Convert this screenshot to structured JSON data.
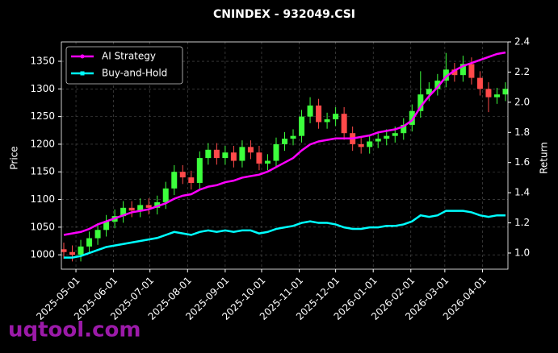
{
  "chart_data": {
    "type": "candlestick",
    "title": "CNINDEX - 932049.CSI",
    "ylabel": "Price",
    "y2label": "Return",
    "watermark": "uqtool.com",
    "up_color": "#3cff3c",
    "down_color": "#ff4a4a",
    "grid": true,
    "legend": "upper left",
    "x": [
      "2025-04-21",
      "2025-04-28",
      "2025-05-05",
      "2025-05-12",
      "2025-05-19",
      "2025-05-26",
      "2025-06-02",
      "2025-06-09",
      "2025-06-16",
      "2025-06-23",
      "2025-06-30",
      "2025-07-07",
      "2025-07-14",
      "2025-07-21",
      "2025-07-28",
      "2025-08-04",
      "2025-08-11",
      "2025-08-18",
      "2025-08-25",
      "2025-09-01",
      "2025-09-08",
      "2025-09-15",
      "2025-09-22",
      "2025-09-29",
      "2025-10-06",
      "2025-10-13",
      "2025-10-20",
      "2025-10-27",
      "2025-11-03",
      "2025-11-10",
      "2025-11-17",
      "2025-11-24",
      "2025-12-01",
      "2025-12-08",
      "2025-12-15",
      "2025-12-22",
      "2025-12-29",
      "2026-01-05",
      "2026-01-12",
      "2026-01-19",
      "2026-01-26",
      "2026-02-02",
      "2026-02-09",
      "2026-02-16",
      "2026-02-23",
      "2026-03-02",
      "2026-03-09",
      "2026-03-16",
      "2026-03-23",
      "2026-03-30",
      "2026-04-06",
      "2026-04-13",
      "2026-04-20"
    ],
    "open": [
      1010,
      1005,
      1000,
      1015,
      1030,
      1045,
      1060,
      1070,
      1085,
      1080,
      1090,
      1085,
      1095,
      1120,
      1150,
      1140,
      1130,
      1175,
      1190,
      1175,
      1185,
      1170,
      1195,
      1185,
      1165,
      1170,
      1200,
      1210,
      1215,
      1250,
      1270,
      1240,
      1245,
      1255,
      1220,
      1200,
      1195,
      1205,
      1210,
      1215,
      1220,
      1235,
      1260,
      1290,
      1300,
      1315,
      1335,
      1325,
      1345,
      1320,
      1300,
      1285,
      1290
    ],
    "high": [
      1022,
      1017,
      1027,
      1042,
      1057,
      1072,
      1082,
      1097,
      1097,
      1102,
      1102,
      1107,
      1132,
      1162,
      1162,
      1152,
      1187,
      1202,
      1202,
      1197,
      1197,
      1207,
      1207,
      1197,
      1182,
      1212,
      1222,
      1227,
      1262,
      1285,
      1282,
      1257,
      1267,
      1267,
      1232,
      1212,
      1217,
      1222,
      1227,
      1232,
      1247,
      1272,
      1332,
      1312,
      1327,
      1365,
      1347,
      1360,
      1357,
      1332,
      1312,
      1302,
      1312
    ],
    "low": [
      993,
      988,
      988,
      1003,
      1018,
      1033,
      1048,
      1058,
      1068,
      1068,
      1073,
      1073,
      1083,
      1108,
      1128,
      1118,
      1118,
      1163,
      1163,
      1163,
      1158,
      1158,
      1173,
      1153,
      1153,
      1158,
      1188,
      1198,
      1203,
      1238,
      1228,
      1228,
      1233,
      1208,
      1188,
      1183,
      1183,
      1193,
      1198,
      1203,
      1208,
      1223,
      1248,
      1278,
      1288,
      1303,
      1313,
      1313,
      1308,
      1288,
      1258,
      1273,
      1278
    ],
    "close": [
      1005,
      1000,
      1015,
      1030,
      1045,
      1060,
      1070,
      1085,
      1080,
      1090,
      1085,
      1095,
      1120,
      1150,
      1140,
      1130,
      1175,
      1190,
      1175,
      1185,
      1170,
      1195,
      1185,
      1165,
      1170,
      1200,
      1210,
      1215,
      1250,
      1270,
      1240,
      1245,
      1255,
      1220,
      1200,
      1195,
      1205,
      1210,
      1215,
      1220,
      1235,
      1260,
      1290,
      1300,
      1315,
      1335,
      1325,
      1345,
      1320,
      1300,
      1285,
      1290,
      1300
    ],
    "series": [
      {
        "name": "AI Strategy",
        "color": "#ff00ff",
        "axis": "y2",
        "values": [
          1.12,
          1.13,
          1.14,
          1.16,
          1.19,
          1.21,
          1.23,
          1.25,
          1.27,
          1.28,
          1.29,
          1.31,
          1.33,
          1.36,
          1.38,
          1.39,
          1.42,
          1.44,
          1.45,
          1.47,
          1.48,
          1.5,
          1.51,
          1.52,
          1.54,
          1.57,
          1.6,
          1.63,
          1.68,
          1.72,
          1.74,
          1.75,
          1.76,
          1.76,
          1.76,
          1.77,
          1.78,
          1.8,
          1.81,
          1.82,
          1.84,
          1.88,
          1.97,
          2.04,
          2.1,
          2.17,
          2.21,
          2.24,
          2.26,
          2.28,
          2.3,
          2.32,
          2.33
        ]
      },
      {
        "name": "Buy-and-Hold",
        "color": "#00ffff",
        "axis": "y2",
        "values": [
          0.97,
          0.97,
          0.98,
          1.0,
          1.02,
          1.04,
          1.05,
          1.06,
          1.07,
          1.08,
          1.09,
          1.1,
          1.12,
          1.14,
          1.13,
          1.12,
          1.14,
          1.15,
          1.14,
          1.15,
          1.14,
          1.15,
          1.15,
          1.13,
          1.14,
          1.16,
          1.17,
          1.18,
          1.2,
          1.21,
          1.2,
          1.2,
          1.19,
          1.17,
          1.16,
          1.16,
          1.17,
          1.17,
          1.18,
          1.18,
          1.19,
          1.21,
          1.25,
          1.24,
          1.25,
          1.28,
          1.28,
          1.28,
          1.27,
          1.25,
          1.24,
          1.25,
          1.25
        ]
      }
    ],
    "xlim": [
      "2025-04-19",
      "2026-04-22"
    ],
    "xticks": [
      "2025-05-01",
      "2025-06-01",
      "2025-07-01",
      "2025-08-01",
      "2025-09-01",
      "2025-10-01",
      "2025-11-01",
      "2025-12-01",
      "2026-01-01",
      "2026-02-01",
      "2026-03-01",
      "2026-04-01"
    ],
    "ylim": [
      974,
      1385
    ],
    "yticks": [
      1000,
      1050,
      1100,
      1150,
      1200,
      1250,
      1300,
      1350
    ],
    "y2lim": [
      0.893,
      2.4
    ],
    "y2ticks": [
      {
        "value": 1.0,
        "label": "1.0"
      },
      1.2,
      1.4,
      1.6,
      1.8,
      {
        "value": 2.0,
        "label": "2.0"
      },
      2.2,
      2.4
    ]
  }
}
